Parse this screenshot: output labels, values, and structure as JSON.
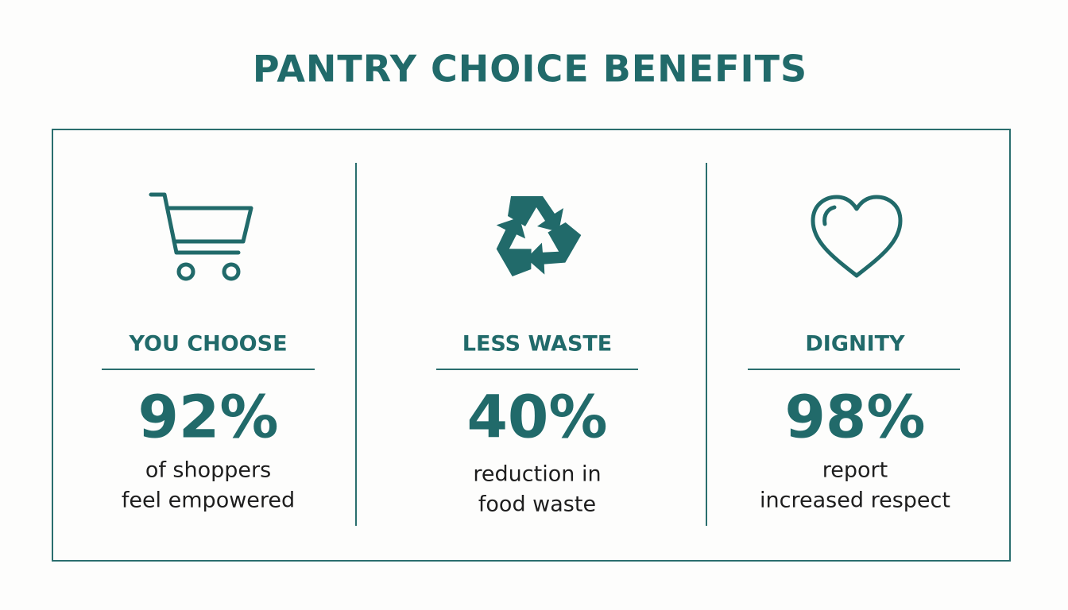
{
  "header": {
    "title": "PANTRY CHOICE BENEFITS"
  },
  "panels": [
    {
      "label": "YOU CHOOSE",
      "stat": "92%",
      "description": [
        "of shoppers",
        "feel empowered"
      ]
    },
    {
      "label": "LESS WASTE",
      "stat": "40%",
      "description": [
        "reduction in",
        "food waste"
      ]
    },
    {
      "label": "DIGNITY",
      "stat": "98%",
      "description": [
        "report",
        "increased respect"
      ]
    }
  ]
}
